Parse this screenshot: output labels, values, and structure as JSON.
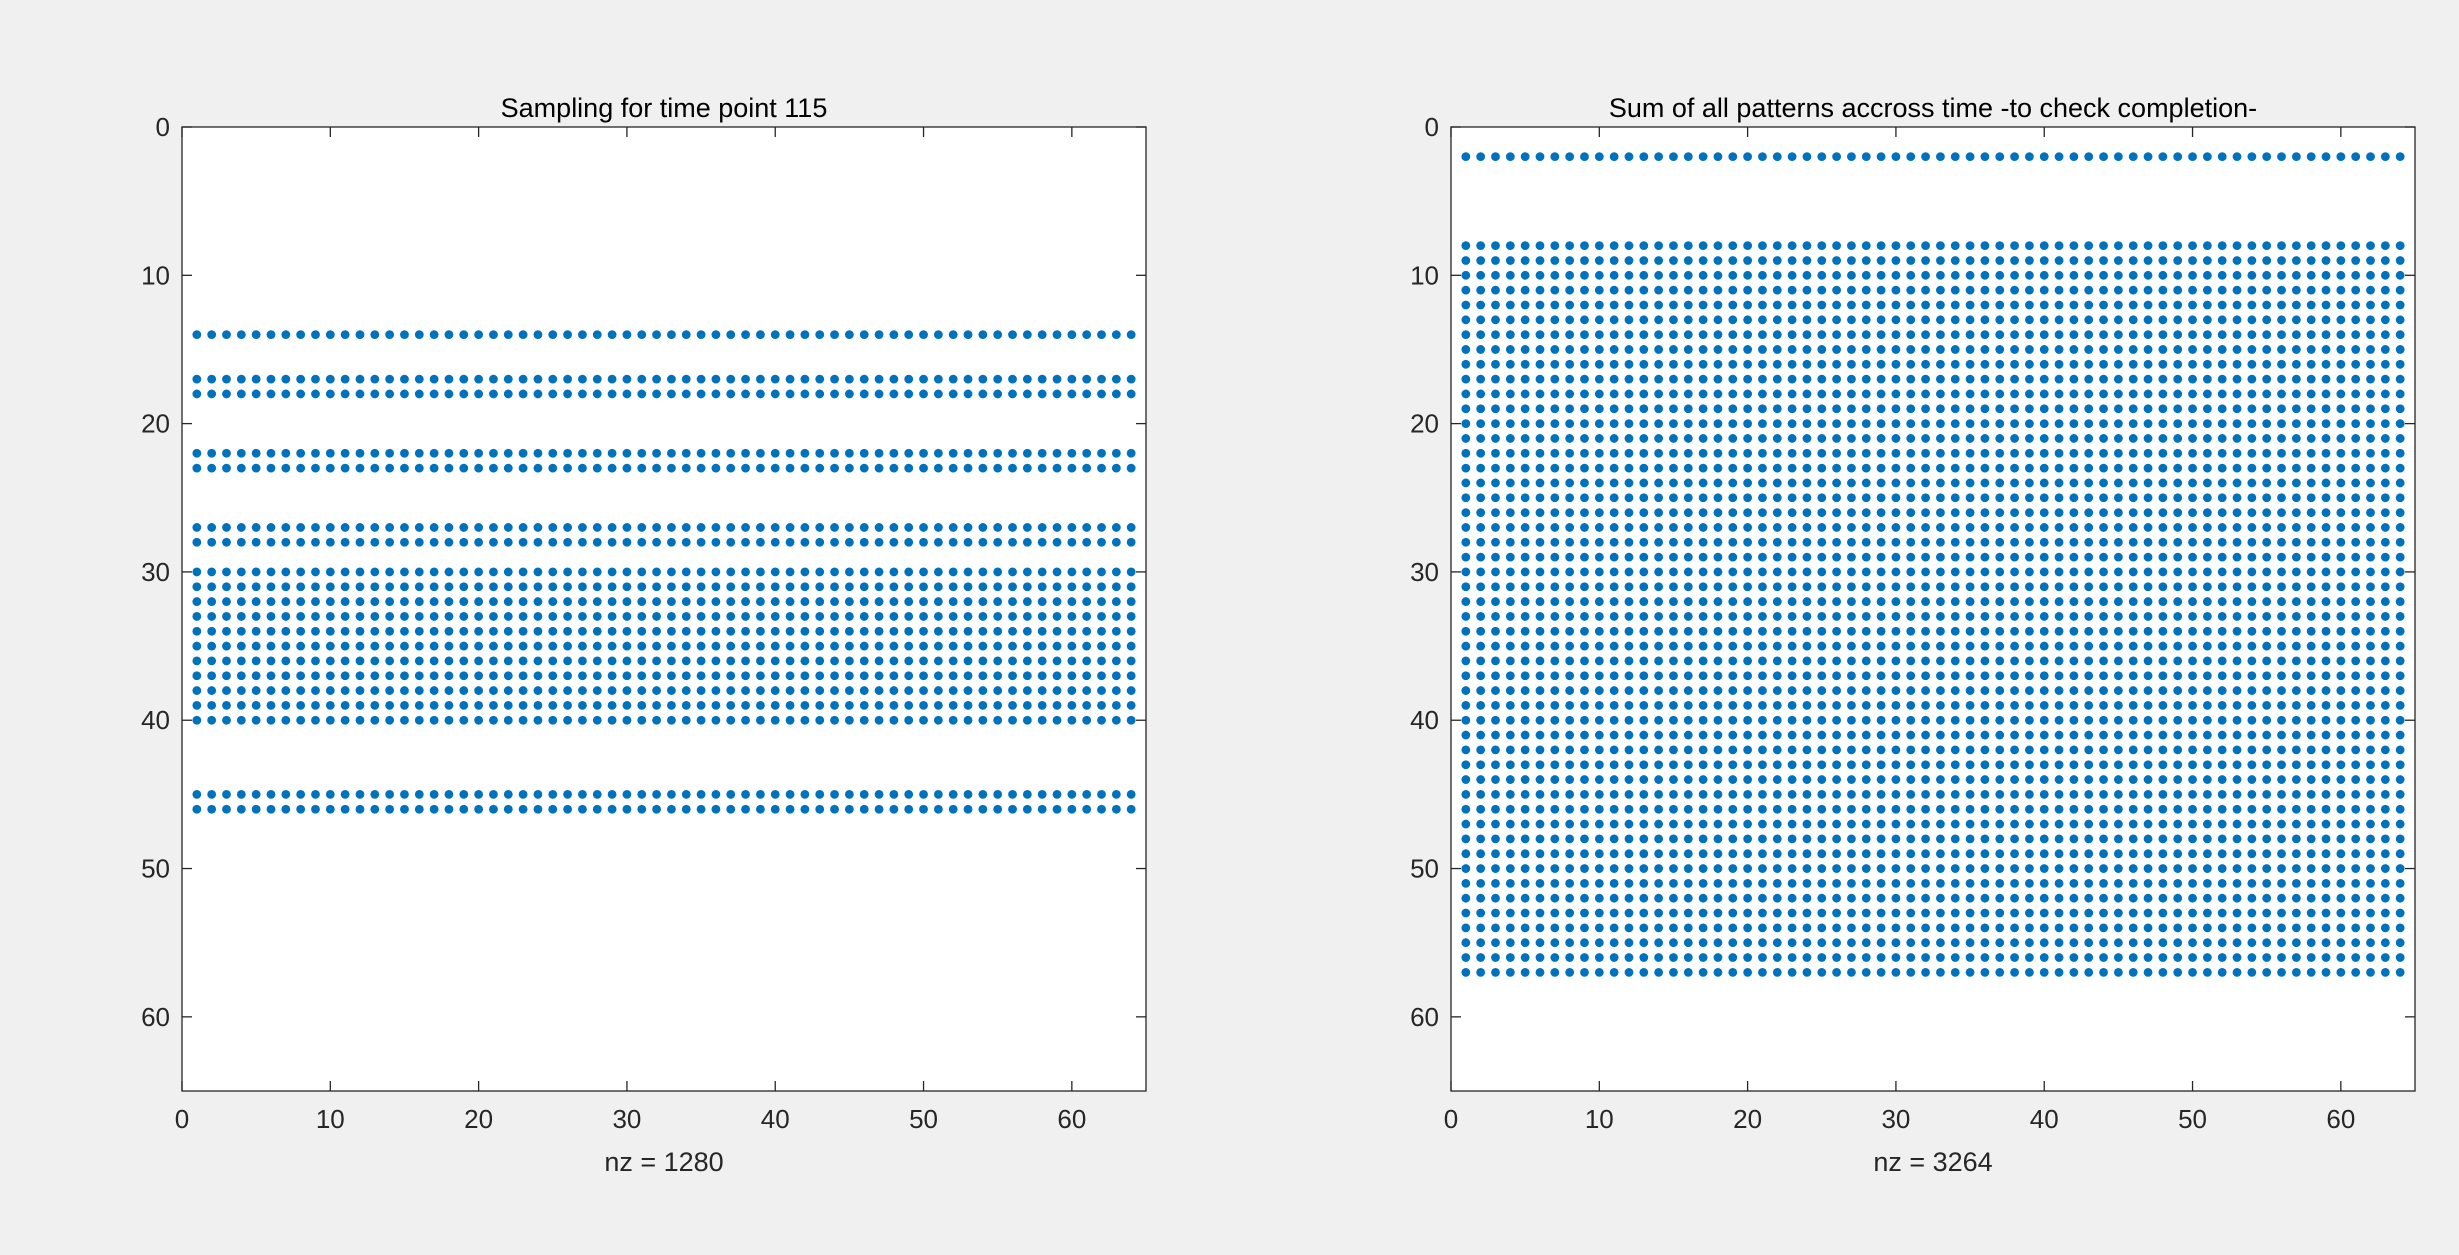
{
  "chart_data": [
    {
      "type": "scatter",
      "subtype": "sparsity-pattern",
      "title": "Sampling for time point 115",
      "xlabel": "nz = 1280",
      "ylabel": "",
      "xlim": [
        0,
        65
      ],
      "ylim": [
        65,
        0
      ],
      "y_reversed": true,
      "xticks": [
        0,
        10,
        20,
        30,
        40,
        50,
        60
      ],
      "yticks": [
        0,
        10,
        20,
        30,
        40,
        50,
        60
      ],
      "grid": false,
      "marker_color": "#0072bd",
      "columns": [
        1,
        64
      ],
      "rows": [
        14,
        17,
        18,
        22,
        23,
        27,
        28,
        30,
        31,
        32,
        33,
        34,
        35,
        36,
        37,
        38,
        39,
        40,
        45,
        46
      ]
    },
    {
      "type": "scatter",
      "subtype": "sparsity-pattern",
      "title": "Sum of all patterns accross time -to check completion-",
      "xlabel": "nz = 3264",
      "ylabel": "",
      "xlim": [
        0,
        65
      ],
      "ylim": [
        65,
        0
      ],
      "y_reversed": true,
      "xticks": [
        0,
        10,
        20,
        30,
        40,
        50,
        60
      ],
      "yticks": [
        0,
        10,
        20,
        30,
        40,
        50,
        60
      ],
      "grid": false,
      "marker_color": "#0072bd",
      "columns": [
        1,
        64
      ],
      "rows": [
        2,
        8,
        9,
        10,
        11,
        12,
        13,
        14,
        15,
        16,
        17,
        18,
        19,
        20,
        21,
        22,
        23,
        24,
        25,
        26,
        27,
        28,
        29,
        30,
        31,
        32,
        33,
        34,
        35,
        36,
        37,
        38,
        39,
        40,
        41,
        42,
        43,
        44,
        45,
        46,
        47,
        48,
        49,
        50,
        51,
        52,
        53,
        54,
        55,
        56,
        57
      ]
    }
  ]
}
